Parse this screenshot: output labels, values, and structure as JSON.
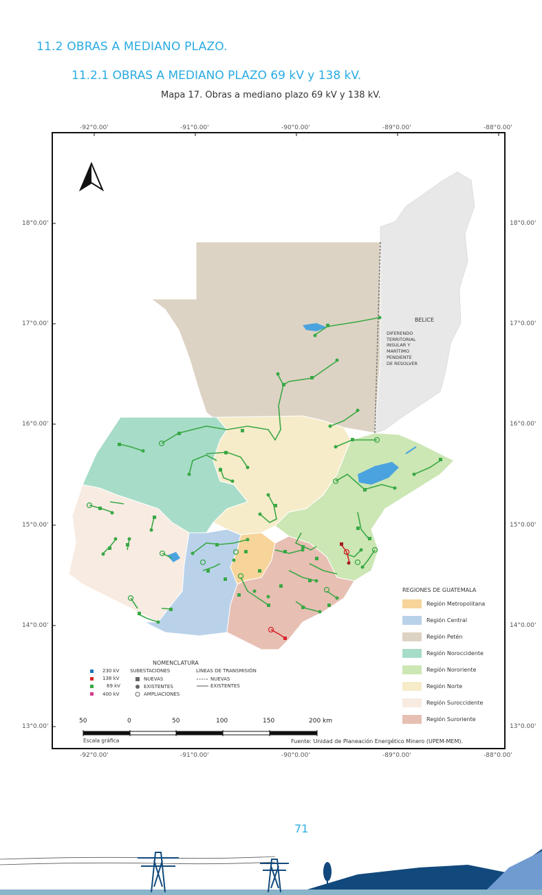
{
  "header": {
    "section": "11.2 OBRAS A MEDIANO PLAZO.",
    "subsection": "11.2.1 OBRAS A MEDIANO PLAZO 69 kV y 138 kV.",
    "caption": "Mapa 17. Obras a mediano plazo 69 kV y 138 kV."
  },
  "map": {
    "lon_labels": [
      "-92°0.00'",
      "-91°0.00'",
      "-90°0.00'",
      "-89°0.00'",
      "-88°0.00'"
    ],
    "lat_labels": [
      "18°0.00'",
      "17°0.00'",
      "16°0.00'",
      "15°0.00'",
      "14°0.00'",
      "13°0.00'"
    ],
    "belize_label": "BELICE",
    "dispute_label": [
      "DIFERENDO",
      "TERRITORIAL",
      "INSULAR Y",
      "MARÍTIMO",
      "PENDIENTE",
      "DE RESOLVER"
    ],
    "regions_title": "REGIONES DE GUATEMALA",
    "regions": [
      {
        "name": "Región Metropolitana",
        "color": "#f7d49a"
      },
      {
        "name": "Región Central",
        "color": "#b9d2ea"
      },
      {
        "name": "Región Petén",
        "color": "#ddd3c4"
      },
      {
        "name": "Región Noroccidente",
        "color": "#a7dcc8"
      },
      {
        "name": "Región Nororiente",
        "color": "#cce6b4"
      },
      {
        "name": "Región Norte",
        "color": "#f6ecca"
      },
      {
        "name": "Región Suroccidente",
        "color": "#f7ebe2"
      },
      {
        "name": "Región Suroriente",
        "color": "#e7bfb3"
      }
    ],
    "nomenclature": {
      "title": "NOMENCLATURA",
      "voltages": [
        "230 kV",
        "138 kV",
        "69 kV",
        "400 kV"
      ],
      "voltage_colors": [
        "#1b75bb",
        "#d7262c",
        "#39a845",
        "#d63a8c"
      ],
      "substations_title": "SUBESTACIONES",
      "substations": [
        "NUEVAS",
        "EXISTENTES",
        "AMPLIACIONES"
      ],
      "lines_title": "LÍNEAS DE TRANSMISIÓN",
      "lines": [
        "NUEVAS",
        "EXISTENTES"
      ]
    },
    "scale": {
      "labels": [
        "50",
        "0",
        "50",
        "100",
        "150",
        "200 km"
      ],
      "caption": "Escala gráfica"
    },
    "source": "Fuente: Unidad de Planeación Energético Minero (UPEM-MEM)."
  },
  "footer": {
    "page_number": "71"
  }
}
